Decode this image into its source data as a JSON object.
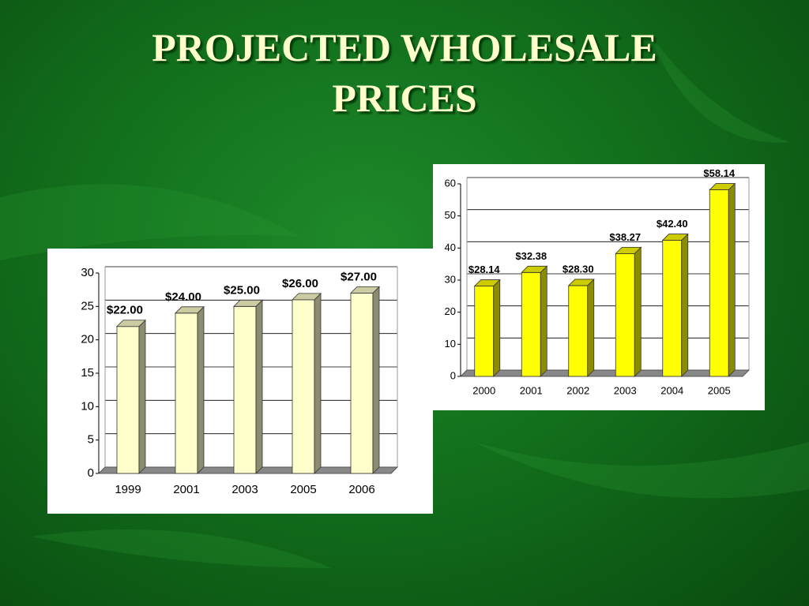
{
  "title": "PROJECTED WHOLESALE PRICES",
  "chart_data": [
    {
      "type": "bar",
      "categories": [
        "1999",
        "2001",
        "2003",
        "2005",
        "2006"
      ],
      "values": [
        22,
        24,
        25,
        26,
        27
      ],
      "value_labels": [
        "$22.00",
        "$24.00",
        "$25.00",
        "$26.00",
        "$27.00"
      ],
      "color": "#ffffcc",
      "ylim": [
        0,
        30
      ],
      "yticks": [
        0,
        5,
        10,
        15,
        20,
        25,
        30
      ],
      "grid": true
    },
    {
      "type": "bar",
      "categories": [
        "2000",
        "2001",
        "2002",
        "2003",
        "2004",
        "2005"
      ],
      "values": [
        28.14,
        32.38,
        28.3,
        38.27,
        42.4,
        58.14
      ],
      "value_labels": [
        "$28.14",
        "$32.38",
        "$28.30",
        "$38.27",
        "$42.40",
        "$58.14"
      ],
      "color": "#ffff00",
      "ylim": [
        0,
        60
      ],
      "yticks": [
        0,
        10,
        20,
        30,
        40,
        50,
        60
      ],
      "grid": true
    }
  ]
}
